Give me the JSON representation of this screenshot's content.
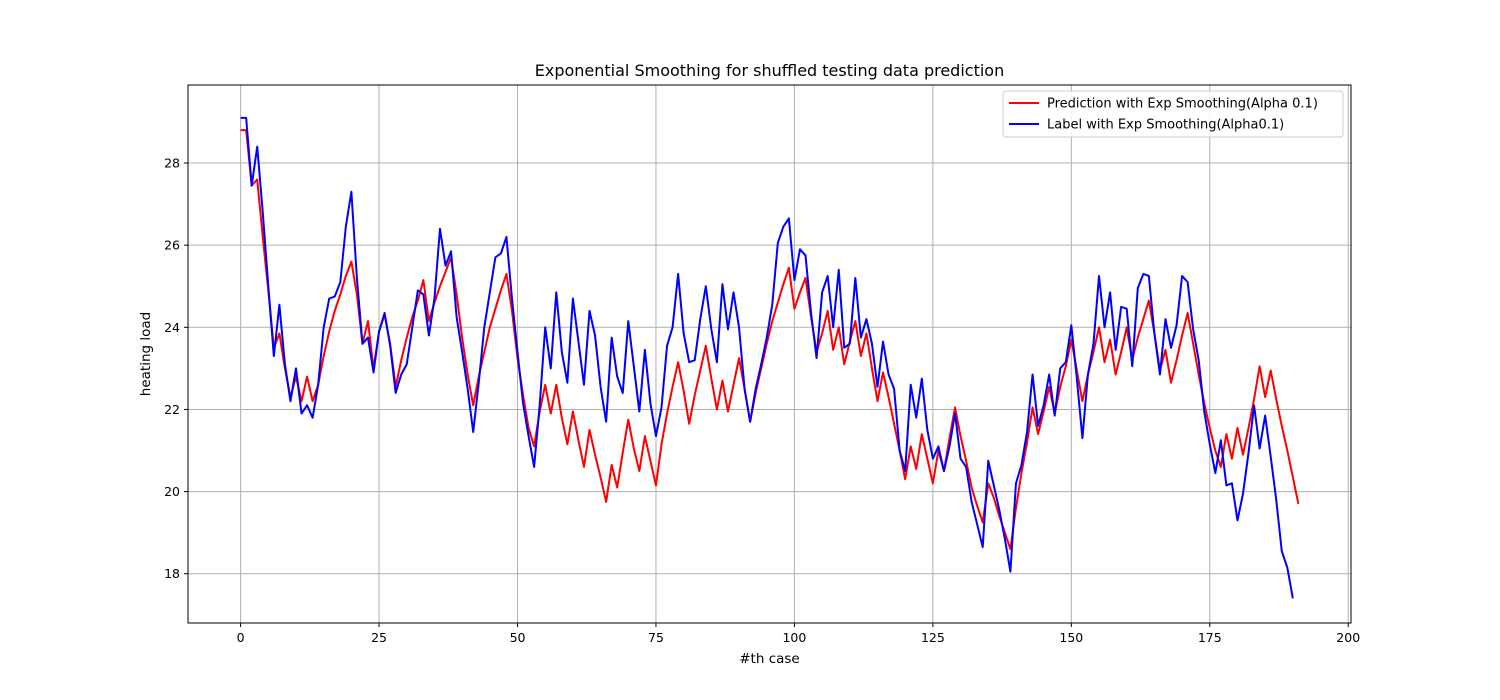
{
  "chart_data": {
    "type": "line",
    "title": "Exponential Smoothing for shuffled testing data prediction",
    "xlabel": "#th case",
    "ylabel": "heating load",
    "xlim": [
      -9.5,
      200.5
    ],
    "ylim": [
      16.8,
      29.9
    ],
    "x_ticks": [
      0,
      25,
      50,
      75,
      100,
      125,
      150,
      175,
      200
    ],
    "y_ticks": [
      18,
      20,
      22,
      24,
      26,
      28
    ],
    "grid": true,
    "legend_position": "top-right",
    "series": [
      {
        "name": "Prediction with Exp Smoothing(Alpha 0.1)",
        "color": "#ff0000",
        "values": [
          28.8,
          28.8,
          27.45,
          27.6,
          26.2,
          24.9,
          23.5,
          23.85,
          23.0,
          22.3,
          22.8,
          22.2,
          22.8,
          22.2,
          22.6,
          23.3,
          23.9,
          24.4,
          24.8,
          25.25,
          25.6,
          24.8,
          23.6,
          24.15,
          23.0,
          23.9,
          24.3,
          23.6,
          22.55,
          23.2,
          23.75,
          24.25,
          24.65,
          25.15,
          24.15,
          24.6,
          25.0,
          25.35,
          25.7,
          24.8,
          23.75,
          22.85,
          22.1,
          22.8,
          23.4,
          24.0,
          24.45,
          24.9,
          25.3,
          24.4,
          23.25,
          22.35,
          21.55,
          21.1,
          21.95,
          22.6,
          21.9,
          22.6,
          21.8,
          21.15,
          21.95,
          21.25,
          20.6,
          21.5,
          20.9,
          20.35,
          19.75,
          20.65,
          20.1,
          20.95,
          21.75,
          21.05,
          20.5,
          21.35,
          20.75,
          20.15,
          21.15,
          21.9,
          22.55,
          23.15,
          22.45,
          21.65,
          22.35,
          22.95,
          23.55,
          22.75,
          22.0,
          22.7,
          21.95,
          22.6,
          23.25,
          22.5,
          21.7,
          22.4,
          23.0,
          23.6,
          24.15,
          24.6,
          25.05,
          25.45,
          24.45,
          24.85,
          25.2,
          24.25,
          23.4,
          23.85,
          24.4,
          23.45,
          24.0,
          23.1,
          23.65,
          24.15,
          23.3,
          23.85,
          23.0,
          22.2,
          22.9,
          22.3,
          21.65,
          21.0,
          20.3,
          21.1,
          20.55,
          21.4,
          20.8,
          20.2,
          21.0,
          20.5,
          21.3,
          22.05,
          21.35,
          20.75,
          20.1,
          19.65,
          19.25,
          20.2,
          19.85,
          19.4,
          19.0,
          18.6,
          19.6,
          20.45,
          21.2,
          22.05,
          21.4,
          21.95,
          22.55,
          21.9,
          22.55,
          23.05,
          23.7,
          22.95,
          22.2,
          22.85,
          23.4,
          24.0,
          23.15,
          23.7,
          22.85,
          23.4,
          24.0,
          23.2,
          23.75,
          24.2,
          24.65,
          23.85,
          22.95,
          23.45,
          22.65,
          23.2,
          23.8,
          24.35,
          23.6,
          22.85,
          22.15,
          21.55,
          21.0,
          20.6,
          21.4,
          20.8,
          21.55,
          20.9,
          21.55,
          22.25,
          23.05,
          22.3,
          22.95,
          22.25,
          21.6,
          21.0,
          20.35,
          19.7
        ]
      },
      {
        "name": "Label with Exp Smoothing(Alpha0.1)",
        "color": "#0000ff",
        "values": [
          29.1,
          29.1,
          27.45,
          28.4,
          26.8,
          25.0,
          23.3,
          24.55,
          23.1,
          22.2,
          23.0,
          21.9,
          22.1,
          21.8,
          22.6,
          24.0,
          24.7,
          24.75,
          25.1,
          26.45,
          27.3,
          25.2,
          23.6,
          23.75,
          22.9,
          23.9,
          24.35,
          23.55,
          22.4,
          22.85,
          23.1,
          24.0,
          24.9,
          24.8,
          23.8,
          24.7,
          26.4,
          25.5,
          25.85,
          24.25,
          23.4,
          22.5,
          21.45,
          22.65,
          24.0,
          24.85,
          25.7,
          25.8,
          26.2,
          24.7,
          23.4,
          22.15,
          21.35,
          20.6,
          22.1,
          24.0,
          23.0,
          24.85,
          23.4,
          22.65,
          24.7,
          23.65,
          22.6,
          24.4,
          23.8,
          22.55,
          21.7,
          23.75,
          22.8,
          22.4,
          24.15,
          23.05,
          21.95,
          23.45,
          22.15,
          21.35,
          22.05,
          23.55,
          24.0,
          25.3,
          23.85,
          23.15,
          23.2,
          24.2,
          25.0,
          23.95,
          23.15,
          25.05,
          23.95,
          24.85,
          24.0,
          22.5,
          21.7,
          22.5,
          23.1,
          23.75,
          24.55,
          26.05,
          26.45,
          26.65,
          25.15,
          25.9,
          25.75,
          24.35,
          23.25,
          24.85,
          25.25,
          24.0,
          25.4,
          23.5,
          23.6,
          25.2,
          23.75,
          24.2,
          23.6,
          22.55,
          23.65,
          22.85,
          22.5,
          21.0,
          20.5,
          22.6,
          21.8,
          22.75,
          21.5,
          20.8,
          21.1,
          20.5,
          21.1,
          21.9,
          20.8,
          20.6,
          19.75,
          19.2,
          18.65,
          20.75,
          20.15,
          19.55,
          18.85,
          18.05,
          20.2,
          20.65,
          21.45,
          22.85,
          21.6,
          22.1,
          22.85,
          21.85,
          23.0,
          23.15,
          24.05,
          22.75,
          21.3,
          22.85,
          23.6,
          25.25,
          24.0,
          24.85,
          23.45,
          24.5,
          24.45,
          23.05,
          24.95,
          25.3,
          25.25,
          23.85,
          22.85,
          24.2,
          23.5,
          24.05,
          25.25,
          25.1,
          23.95,
          23.2,
          21.95,
          21.15,
          20.45,
          21.25,
          20.15,
          20.2,
          19.3,
          19.95,
          20.95,
          22.1,
          21.05,
          21.85,
          20.85,
          19.8,
          18.55,
          18.15,
          17.4
        ]
      }
    ]
  }
}
